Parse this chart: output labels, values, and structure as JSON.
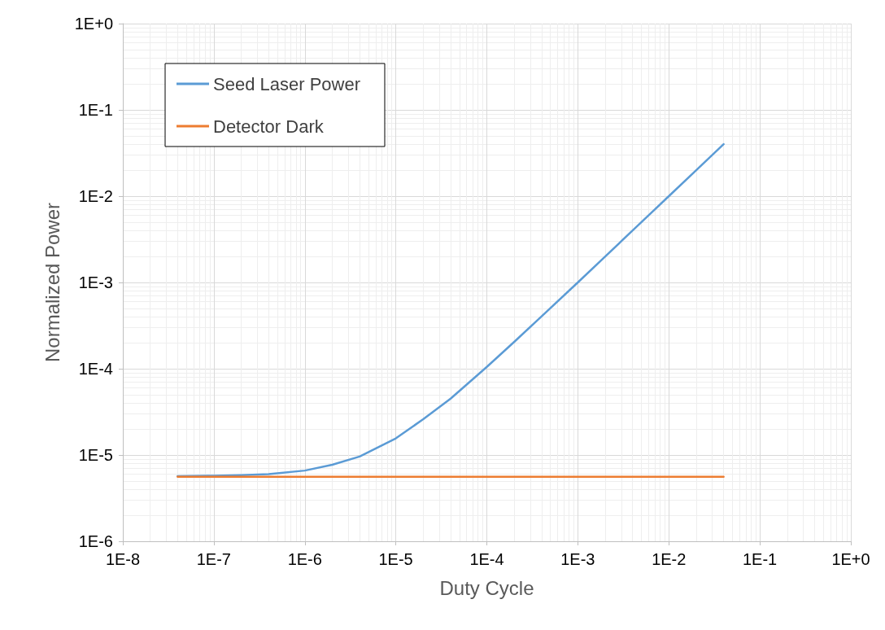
{
  "chart_data": {
    "type": "line",
    "xlabel": "Duty Cycle",
    "ylabel": "Normalized Power",
    "log": "xy",
    "grid": true,
    "legend": "top left",
    "marker": "none",
    "line_style": "solid",
    "x": [
      4e-08,
      1e-07,
      2e-07,
      4e-07,
      1e-06,
      2e-06,
      4e-06,
      1e-05,
      2e-05,
      4e-05,
      0.0001,
      0.0002,
      0.0004,
      0.001,
      0.002,
      0.004,
      0.01,
      0.02,
      0.04
    ],
    "series": [
      {
        "name": "Seed Laser Power",
        "color": "#5b9bd5",
        "values": [
          5.7e-06,
          5.75e-06,
          5.85e-06,
          6e-06,
          6.6e-06,
          7.7e-06,
          9.6e-06,
          1.56e-05,
          2.6e-05,
          4.5e-05,
          0.000105,
          0.000205,
          0.000405,
          0.001,
          0.002,
          0.004,
          0.01,
          0.02,
          0.04
        ]
      },
      {
        "name": "Detector Dark",
        "color": "#ed7d31",
        "values": [
          5.6e-06,
          5.6e-06,
          5.6e-06,
          5.6e-06,
          5.6e-06,
          5.6e-06,
          5.6e-06,
          5.6e-06,
          5.6e-06,
          5.6e-06,
          5.6e-06,
          5.6e-06,
          5.6e-06,
          5.6e-06,
          5.6e-06,
          5.6e-06,
          5.6e-06,
          5.6e-06,
          5.6e-06
        ]
      }
    ],
    "xlim": [
      1e-08,
      1
    ],
    "ylim": [
      1e-06,
      1
    ],
    "xticks": [
      {
        "value": 1e-08,
        "label": "1E-8"
      },
      {
        "value": 1e-07,
        "label": "1E-7"
      },
      {
        "value": 1e-06,
        "label": "1E-6"
      },
      {
        "value": 1e-05,
        "label": "1E-5"
      },
      {
        "value": 0.0001,
        "label": "1E-4"
      },
      {
        "value": 0.001,
        "label": "1E-3"
      },
      {
        "value": 0.01,
        "label": "1E-2"
      },
      {
        "value": 0.1,
        "label": "1E-1"
      },
      {
        "value": 1,
        "label": "1E+0"
      }
    ],
    "yticks": [
      {
        "value": 1e-06,
        "label": "1E-6"
      },
      {
        "value": 1e-05,
        "label": "1E-5"
      },
      {
        "value": 0.0001,
        "label": "1E-4"
      },
      {
        "value": 0.001,
        "label": "1E-3"
      },
      {
        "value": 0.01,
        "label": "1E-2"
      },
      {
        "value": 0.1,
        "label": "1E-1"
      },
      {
        "value": 1,
        "label": "1E+0"
      }
    ]
  }
}
